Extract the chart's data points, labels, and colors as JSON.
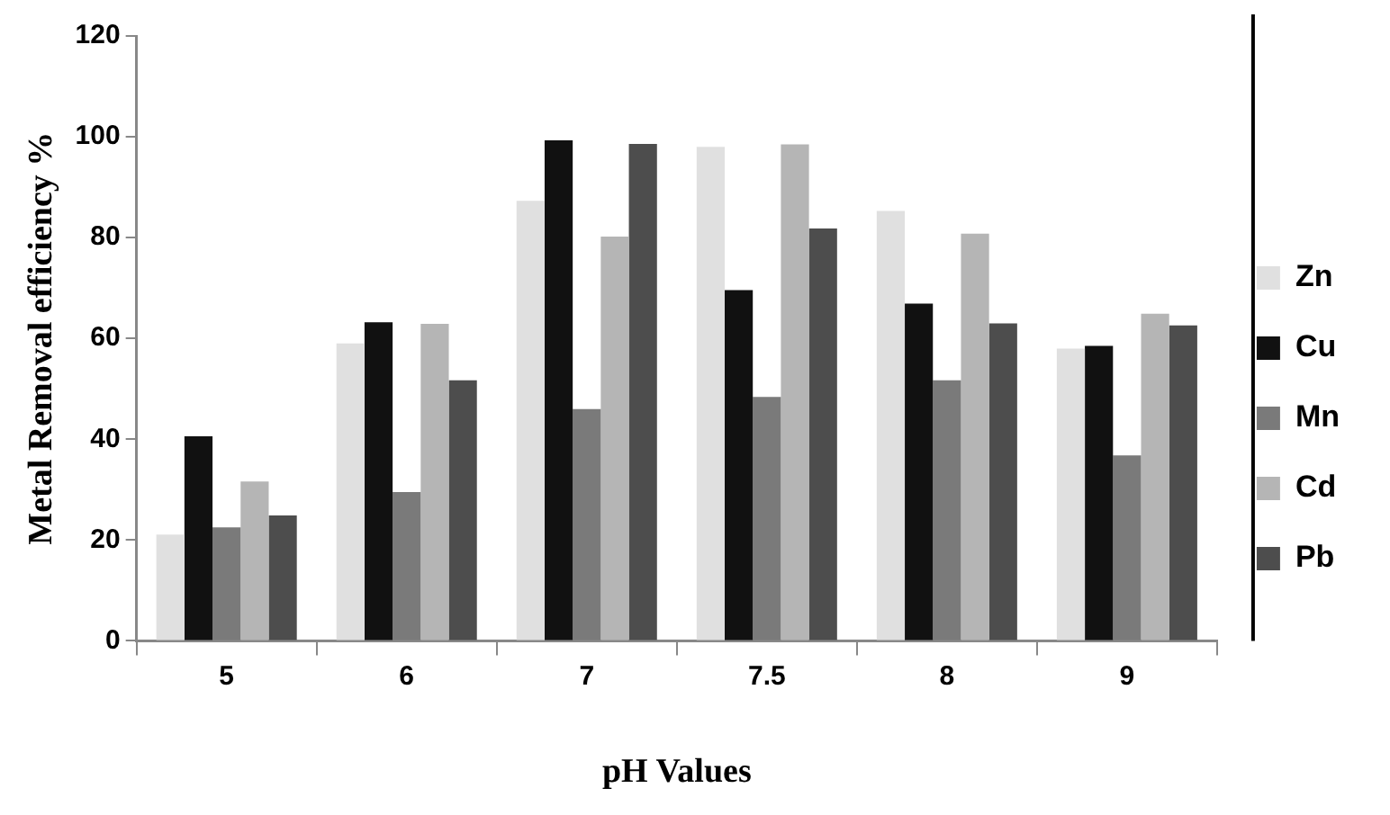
{
  "chart_data": {
    "type": "bar",
    "xlabel": "pH Values",
    "ylabel": "Metal Removal efficiency %",
    "categories": [
      "5",
      "6",
      "7",
      "7.5",
      "8",
      "9"
    ],
    "series": [
      {
        "name": "Zn",
        "color": "#e0e0e0",
        "values": [
          21.1,
          59,
          87.3,
          98,
          85.3,
          58
        ]
      },
      {
        "name": "Cu",
        "color": "#111111",
        "values": [
          40.6,
          63.2,
          99.3,
          69.6,
          66.9,
          58.5
        ]
      },
      {
        "name": "Mn",
        "color": "#7a7a7a",
        "values": [
          22.5,
          29.5,
          46,
          48.4,
          51.7,
          36.8
        ]
      },
      {
        "name": "Cd",
        "color": "#b5b5b5",
        "values": [
          31.6,
          62.9,
          80.2,
          98.5,
          80.8,
          64.9
        ]
      },
      {
        "name": "Pb",
        "color": "#4d4d4d",
        "values": [
          24.9,
          51.7,
          98.6,
          81.8,
          63,
          62.6
        ]
      }
    ],
    "ylim": [
      0,
      120
    ],
    "yticks": [
      0,
      20,
      40,
      60,
      80,
      100,
      120
    ],
    "grid": false,
    "legend": "right"
  }
}
